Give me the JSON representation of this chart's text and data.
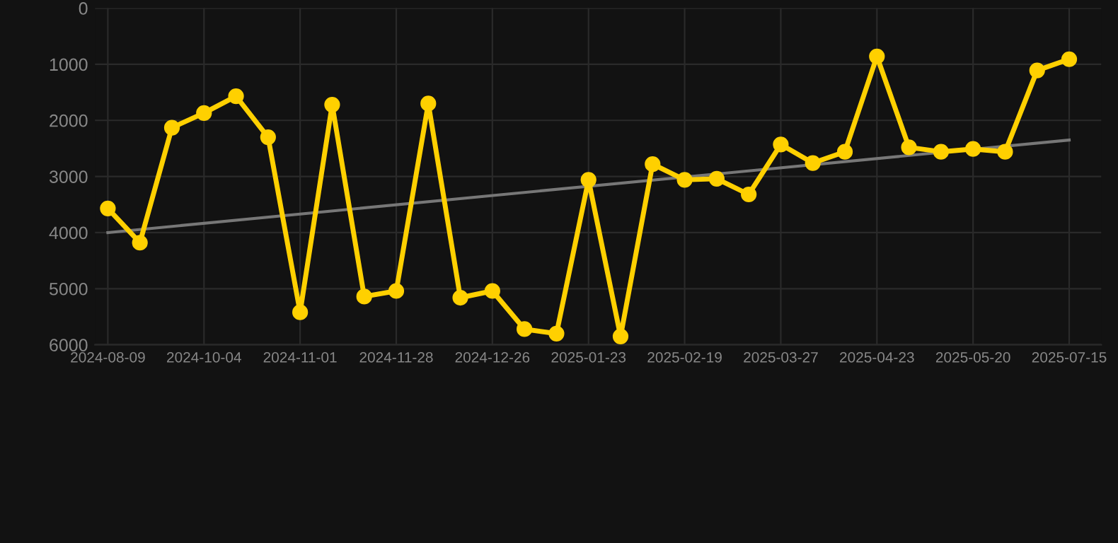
{
  "chart_data": {
    "type": "line",
    "categories": [
      "2024-08-09",
      null,
      null,
      "2024-10-04",
      null,
      null,
      "2024-11-01",
      null,
      null,
      "2024-11-28",
      null,
      null,
      "2024-12-26",
      null,
      null,
      "2025-01-23",
      null,
      null,
      "2025-02-19",
      null,
      null,
      "2025-03-27",
      null,
      null,
      "2025-04-23",
      null,
      null,
      "2025-05-20",
      null,
      null,
      "2025-07-15"
    ],
    "series": [
      {
        "color": "#ffd000",
        "marker": "circle",
        "values": [
          3570,
          4180,
          2130,
          1870,
          1570,
          2300,
          5420,
          1720,
          5140,
          5040,
          1700,
          5160,
          5040,
          5720,
          5800,
          3060,
          5850,
          2780,
          3060,
          3040,
          3320,
          2430,
          2760,
          2560,
          860,
          2480,
          2560,
          2510,
          2560,
          1110,
          910
        ]
      },
      {
        "color": "#777777",
        "marker": "none",
        "values": [
          4000,
          null,
          null,
          null,
          null,
          null,
          null,
          null,
          null,
          null,
          null,
          null,
          null,
          null,
          null,
          null,
          null,
          null,
          null,
          null,
          null,
          null,
          null,
          null,
          null,
          null,
          null,
          null,
          null,
          null,
          2350
        ]
      }
    ],
    "ylim": [
      6000,
      0
    ],
    "yticks": [
      0,
      1000,
      2000,
      3000,
      4000,
      5000,
      6000
    ],
    "grid": true
  }
}
